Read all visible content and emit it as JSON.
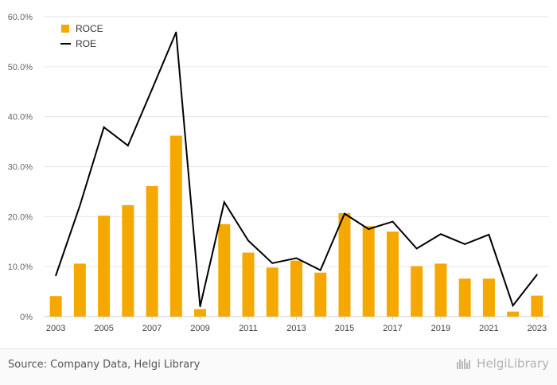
{
  "chart_data": {
    "type": "bar",
    "x": [
      2003,
      2004,
      2005,
      2006,
      2007,
      2008,
      2009,
      2010,
      2011,
      2012,
      2013,
      2014,
      2015,
      2016,
      2017,
      2018,
      2019,
      2020,
      2021,
      2022,
      2023
    ],
    "xtick_labels": [
      "2003",
      "2005",
      "2007",
      "2009",
      "2011",
      "2013",
      "2015",
      "2017",
      "2019",
      "2021",
      "2023"
    ],
    "series": [
      {
        "name": "ROCE",
        "type": "bar",
        "color": "#f5a800",
        "values": [
          4.1,
          10.6,
          20.2,
          22.3,
          26.1,
          36.2,
          1.5,
          18.5,
          12.8,
          9.8,
          11.2,
          8.8,
          20.7,
          18.1,
          17.0,
          10.1,
          10.6,
          7.6,
          7.6,
          1.0,
          4.2
        ]
      },
      {
        "name": "ROE",
        "type": "line",
        "color": "#000000",
        "values": [
          8.2,
          22.2,
          37.9,
          34.2,
          45.5,
          56.9,
          2.0,
          22.9,
          15.2,
          10.7,
          11.7,
          9.3,
          20.6,
          17.5,
          19.0,
          13.6,
          16.5,
          14.5,
          16.4,
          2.2,
          8.4
        ]
      }
    ],
    "ylim": [
      0,
      60
    ],
    "yticks": [
      "0%",
      "10.0%",
      "20.0%",
      "30.0%",
      "40.0%",
      "50.0%",
      "60.0%"
    ],
    "grid": true,
    "legend": "top-left"
  },
  "footer": {
    "source": "Source: Company Data, Helgi Library",
    "brand": "HelgiLibrary"
  }
}
